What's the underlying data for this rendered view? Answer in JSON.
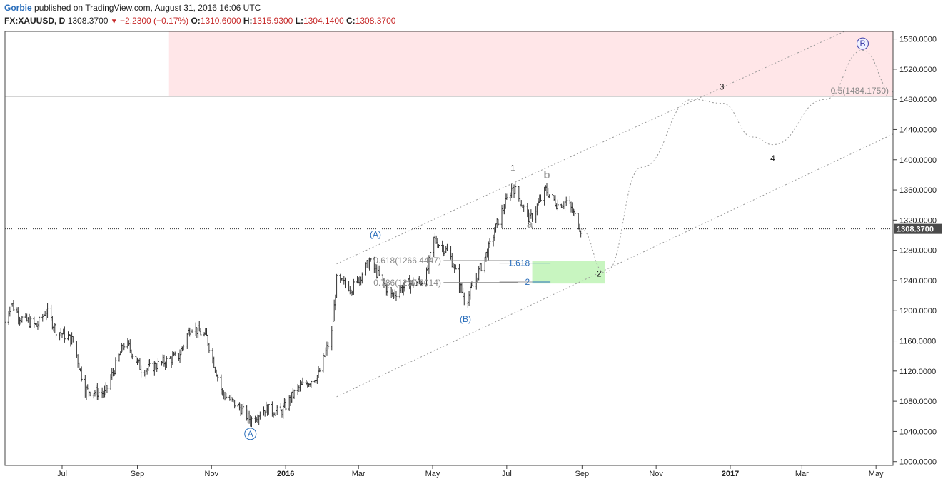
{
  "header": {
    "author": "Gorbie",
    "published_text": "published on TradingView.com, August 31, 2016 16:06 UTC",
    "symbol": "FX:XAUUSD, D",
    "last": "1308.3700",
    "change": "−2.2300 (−0.17%)",
    "open_label": "O:",
    "open": "1310.6000",
    "high_label": "H:",
    "high": "1315.9300",
    "low_label": "L:",
    "low": "1304.1400",
    "close_label": "C:",
    "close": "1308.3700"
  },
  "colors": {
    "down": "#c62828",
    "zone_red": "#ffe6e8",
    "zone_green": "#c8f5c0",
    "fib_blue": "#2a6ebb",
    "wave_blue": "#2a6ebb",
    "wave_gray": "#a0a0a0",
    "price_tag": "#4a4a4a"
  },
  "chart_data": {
    "type": "ohlc",
    "timeframe": "D",
    "x_ticks": [
      "Jul",
      "Sep",
      "Nov",
      "2016",
      "Mar",
      "May",
      "Jul",
      "Sep",
      "Nov",
      "2017",
      "Mar",
      "May"
    ],
    "y_ticks": [
      "1000.0000",
      "1040.0000",
      "1080.0000",
      "1120.0000",
      "1160.0000",
      "1200.0000",
      "1240.0000",
      "1280.0000",
      "1320.0000",
      "1360.0000",
      "1400.0000",
      "1440.0000",
      "1480.0000",
      "1520.0000",
      "1560.0000"
    ],
    "ylim": [
      995,
      1570
    ],
    "xlim": [
      "2015-05-15",
      "2017-05-15"
    ],
    "last_price_tag": "1308.3700",
    "price_path": [
      {
        "date": "2015-05-15",
        "price": 1185
      },
      {
        "date": "2015-05-20",
        "price": 1210
      },
      {
        "date": "2015-05-28",
        "price": 1190
      },
      {
        "date": "2015-06-10",
        "price": 1180
      },
      {
        "date": "2015-06-18",
        "price": 1200
      },
      {
        "date": "2015-06-26",
        "price": 1175
      },
      {
        "date": "2015-07-10",
        "price": 1160
      },
      {
        "date": "2015-07-20",
        "price": 1095
      },
      {
        "date": "2015-08-05",
        "price": 1090
      },
      {
        "date": "2015-08-22",
        "price": 1160
      },
      {
        "date": "2015-09-05",
        "price": 1120
      },
      {
        "date": "2015-09-20",
        "price": 1130
      },
      {
        "date": "2015-10-05",
        "price": 1140
      },
      {
        "date": "2015-10-15",
        "price": 1180
      },
      {
        "date": "2015-10-28",
        "price": 1165
      },
      {
        "date": "2015-11-10",
        "price": 1090
      },
      {
        "date": "2015-11-25",
        "price": 1070
      },
      {
        "date": "2015-12-03",
        "price": 1055
      },
      {
        "date": "2015-12-15",
        "price": 1070
      },
      {
        "date": "2015-12-28",
        "price": 1065
      },
      {
        "date": "2016-01-10",
        "price": 1095
      },
      {
        "date": "2016-01-28",
        "price": 1115
      },
      {
        "date": "2016-02-08",
        "price": 1170
      },
      {
        "date": "2016-02-12",
        "price": 1240
      },
      {
        "date": "2016-02-25",
        "price": 1230
      },
      {
        "date": "2016-03-10",
        "price": 1265
      },
      {
        "date": "2016-03-28",
        "price": 1220
      },
      {
        "date": "2016-04-10",
        "price": 1235
      },
      {
        "date": "2016-04-25",
        "price": 1240
      },
      {
        "date": "2016-05-02",
        "price": 1295
      },
      {
        "date": "2016-05-15",
        "price": 1275
      },
      {
        "date": "2016-05-28",
        "price": 1210
      },
      {
        "date": "2016-06-05",
        "price": 1240
      },
      {
        "date": "2016-06-18",
        "price": 1290
      },
      {
        "date": "2016-06-24",
        "price": 1320
      },
      {
        "date": "2016-07-06",
        "price": 1365
      },
      {
        "date": "2016-07-20",
        "price": 1320
      },
      {
        "date": "2016-08-02",
        "price": 1360
      },
      {
        "date": "2016-08-12",
        "price": 1340
      },
      {
        "date": "2016-08-20",
        "price": 1345
      },
      {
        "date": "2016-08-31",
        "price": 1308
      }
    ],
    "annotations": {
      "waves": [
        {
          "text": "A",
          "date": "2015-12-03",
          "price": 1033,
          "style": "circled"
        },
        {
          "text": "(A)",
          "date": "2016-03-15",
          "price": 1297,
          "style": "blue"
        },
        {
          "text": "(B)",
          "date": "2016-05-28",
          "price": 1185,
          "style": "blue"
        },
        {
          "text": "1",
          "date": "2016-07-06",
          "price": 1385,
          "style": "black"
        },
        {
          "text": "a",
          "date": "2016-07-20",
          "price": 1310,
          "style": "gray"
        },
        {
          "text": "b",
          "date": "2016-08-03",
          "price": 1375,
          "style": "gray"
        },
        {
          "text": "2",
          "date": "2016-09-15",
          "price": 1245,
          "style": "black"
        },
        {
          "text": "3",
          "date": "2016-12-25",
          "price": 1493,
          "style": "black"
        },
        {
          "text": "4",
          "date": "2017-02-05",
          "price": 1398,
          "style": "black"
        },
        {
          "text": "B",
          "date": "2017-04-20",
          "price": 1550,
          "style": "circled-purple"
        }
      ],
      "fib_retracements": [
        {
          "text": "0.618(1266.4447)",
          "price": 1266.4447
        },
        {
          "text": "0.786(1237.3014)",
          "price": 1237.3014
        }
      ],
      "fib_extensions": [
        {
          "text": "1.618",
          "price": 1263
        },
        {
          "text": "2",
          "price": 1238
        }
      ],
      "horizontal_level": {
        "text": "0.5(1484.1750)",
        "price": 1484.175
      },
      "resistance_zone": {
        "from_date": "2015-09-27",
        "price_low": 1484.175,
        "price_high": 1570
      },
      "target_zone": {
        "from_date": "2016-07-22",
        "to_date": "2016-09-20",
        "price_low": 1236,
        "price_high": 1266
      },
      "channel": [
        {
          "from": {
            "date": "2016-02-12",
            "price": 1262
          },
          "to": {
            "date": "2017-04-05",
            "price": 1570
          }
        },
        {
          "from": {
            "date": "2016-02-12",
            "price": 1086
          },
          "to": {
            "date": "2017-05-15",
            "price": 1434
          }
        }
      ],
      "projection_path": [
        {
          "date": "2016-08-31",
          "price": 1308
        },
        {
          "date": "2016-09-20",
          "price": 1250
        },
        {
          "date": "2016-10-20",
          "price": 1390
        },
        {
          "date": "2016-12-01",
          "price": 1480
        },
        {
          "date": "2016-12-25",
          "price": 1475
        },
        {
          "date": "2017-01-20",
          "price": 1430
        },
        {
          "date": "2017-02-05",
          "price": 1420
        },
        {
          "date": "2017-03-20",
          "price": 1480
        },
        {
          "date": "2017-04-20",
          "price": 1545
        },
        {
          "date": "2017-05-15",
          "price": 1490
        }
      ]
    }
  }
}
